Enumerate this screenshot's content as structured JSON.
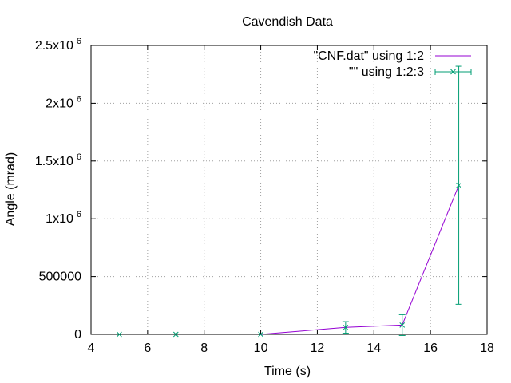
{
  "chart_data": {
    "type": "line",
    "title": "Cavendish Data",
    "xlabel": "Time (s)",
    "ylabel": "Angle (mrad)",
    "xlim": [
      4,
      18
    ],
    "ylim": [
      0,
      2500000
    ],
    "x_ticks": [
      4,
      6,
      8,
      10,
      12,
      14,
      16,
      18
    ],
    "x_tick_labels": [
      "4",
      "6",
      "8",
      "10",
      "12",
      "14",
      "16",
      "18"
    ],
    "y_ticks": [
      {
        "value": 0,
        "mantissa": "0",
        "exp": ""
      },
      {
        "value": 500000,
        "mantissa": "500000",
        "exp": ""
      },
      {
        "value": 1000000,
        "mantissa": "1x10",
        "exp": "6"
      },
      {
        "value": 1500000,
        "mantissa": "1.5x10",
        "exp": "6"
      },
      {
        "value": 2000000,
        "mantissa": "2x10",
        "exp": "6"
      },
      {
        "value": 2500000,
        "mantissa": "2.5x10",
        "exp": "6"
      }
    ],
    "grid": true,
    "legend_position": "top-right",
    "series": [
      {
        "name": "\"CNF.dat\" using 1:2",
        "style": "line",
        "color": "#9400d3",
        "x": [
          10,
          13,
          15,
          17
        ],
        "y": [
          0,
          60000,
          80000,
          1290000
        ]
      },
      {
        "name": "\"\" using 1:2:3",
        "style": "errorbars",
        "color": "#009e73",
        "x": [
          5,
          7,
          10,
          13,
          15,
          17
        ],
        "y": [
          0,
          0,
          0,
          60000,
          80000,
          1290000
        ],
        "err": [
          0,
          0,
          0,
          50000,
          90000,
          1030000
        ]
      }
    ]
  }
}
